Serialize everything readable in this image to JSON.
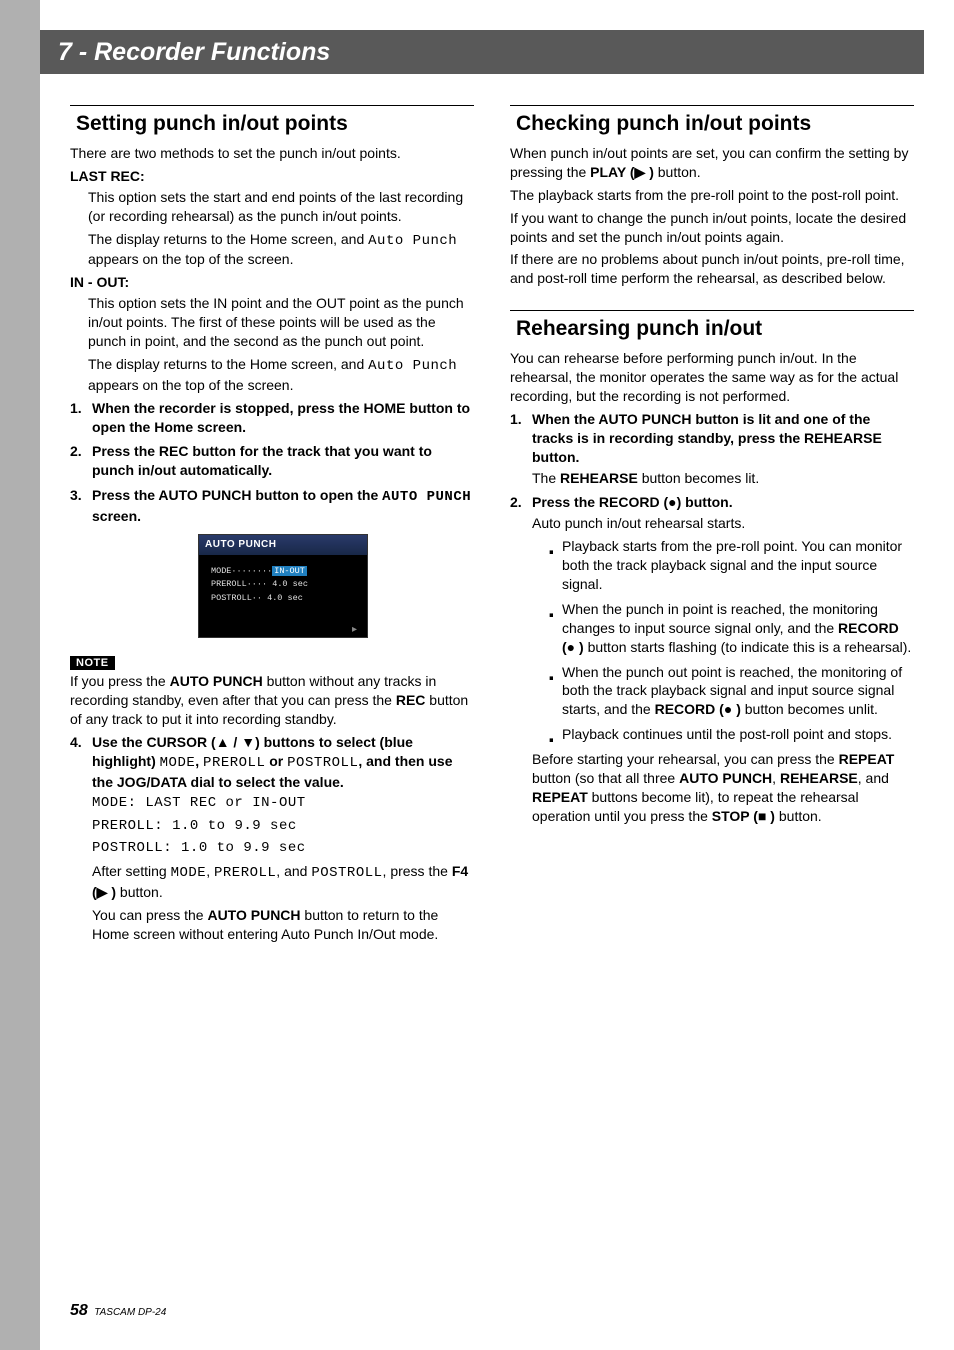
{
  "header": {
    "title": "7 - Recorder Functions"
  },
  "footer": {
    "page": "58",
    "model": "TASCAM DP-24"
  },
  "left": {
    "h_setting": "Setting punch in/out points",
    "intro": "There are two methods to set the punch in/out points.",
    "lastrec_head": "LAST REC:",
    "lastrec_p1": "This option sets the start and end points of the last recording (or recording rehearsal) as the punch in/out points.",
    "lastrec_p2a": "The display returns to the Home screen, and ",
    "lastrec_p2b": " appears on the top of the screen.",
    "auto_punch_mono": "Auto Punch",
    "inout_head": "IN - OUT:",
    "inout_p1": "This option sets the IN point and the OUT point as the punch in/out points. The first of these points will be used as the punch in point, and the second as the punch out point.",
    "inout_p2a": "The display returns to the Home screen, and ",
    "inout_p2b": " appears on the top of the screen.",
    "step1": "When the recorder is stopped, press the HOME button to open the Home screen.",
    "step2": "Press the REC button for the track that you want to punch in/out automatically.",
    "step3a": "Press the AUTO PUNCH button to open the ",
    "step3_mono": "AUTO PUNCH",
    "step3b": " screen.",
    "screenshot": {
      "title": "AUTO PUNCH",
      "rows": [
        {
          "label": "MODE········",
          "val": "IN-OUT",
          "hl": true
        },
        {
          "label": "PREROLL···· ",
          "val": "4.0 sec",
          "hl": false
        },
        {
          "label": "POSTROLL·· ",
          "val": "4.0 sec",
          "hl": false
        }
      ]
    },
    "note_tag": "NOTE",
    "note_a": "If you press the ",
    "note_b": " button without any tracks in recording standby, even after that you can press the ",
    "note_c": " button of any track to put it into recording standby.",
    "note_bold1": "AUTO PUNCH",
    "note_bold2": "REC",
    "step4a": "Use the CURSOR (",
    "step4b": ") buttons to select (blue highlight) ",
    "step4_or": " or ",
    "step4c": ", and then use the JOG/DATA dial to select the value.",
    "mono_mode": "MODE",
    "mono_preroll": "PREROLL",
    "mono_postroll": "POSTROLL",
    "opt_mode_a": "MODE: LAST REC",
    "opt_mode_or": " or ",
    "opt_mode_b": "IN-OUT",
    "opt_pre_a": "PREROLL: 1.0",
    "opt_to": " to ",
    "opt_pre_b": "9.9 sec",
    "opt_post_a": "POSTROLL: 1.0",
    "opt_post_b": "9.9 sec",
    "after_a": "After setting ",
    "after_b": ", and ",
    "after_c": ", press the ",
    "after_d": " button.",
    "f4_label": "F4 (",
    "return_a": "You can press the ",
    "return_b": " button to return to the Home screen without entering Auto Punch In/Out mode.",
    "return_bold": "AUTO PUNCH"
  },
  "right": {
    "h_checking": "Checking punch in/out points",
    "check_p1a": "When punch in/out points are set, you can confirm the setting by pressing the ",
    "check_p1b": " button.",
    "play_label": "PLAY (",
    "check_p2": "The playback starts from the pre-roll point to the post-roll point.",
    "check_p3": "If you want to change the punch in/out points, locate the desired points and set the punch in/out points again.",
    "check_p4": "If there are no problems about punch in/out points, pre-roll time, and post-roll time perform the rehearsal, as described below.",
    "h_rehearse": "Rehearsing punch in/out",
    "reh_p1": "You can rehearse before performing punch in/out. In the rehearsal, the monitor operates the same way as for the actual recording, but the recording is not performed.",
    "reh_s1": "When the AUTO PUNCH button is lit and one of the tracks is in recording standby, press the REHEARSE button.",
    "reh_s1b_a": "The ",
    "reh_s1b_b": " button becomes lit.",
    "rehearse_bold": "REHEARSE",
    "reh_s2a": "Press the RECORD (",
    "reh_s2b": ") button.",
    "reh_s2_body": "Auto punch in/out rehearsal starts.",
    "b1": "Playback starts from the pre-roll point. You can monitor both the track playback signal and the input source signal.",
    "b2a": "When the punch in point is reached, the monitoring changes to input source signal only, and the ",
    "b2_rec": "RECORD (",
    "b2b": " button starts flashing (to indicate this is a rehearsal).",
    "b3a": "When the punch out point is reached, the monitoring of both the track playback signal and input source signal starts, and the ",
    "b3b": " button becomes unlit.",
    "b4": "Playback continues until the post-roll point and stops.",
    "reh_after_a": "Before starting your rehearsal, you can press the ",
    "reh_after_b": " button (so that all three ",
    "reh_after_c": ", and ",
    "reh_after_d": " buttons become lit), to repeat the rehearsal operation until you press the ",
    "reh_after_e": " button.",
    "repeat_bold": "REPEAT",
    "ap_bold": "AUTO PUNCH",
    "stop_label": "STOP (",
    "close_paren": " )"
  },
  "glyph": {
    "up": "▲",
    "down": "▼",
    "play": "▶",
    "rec": "●",
    "stop": "■",
    "slash": " / "
  }
}
